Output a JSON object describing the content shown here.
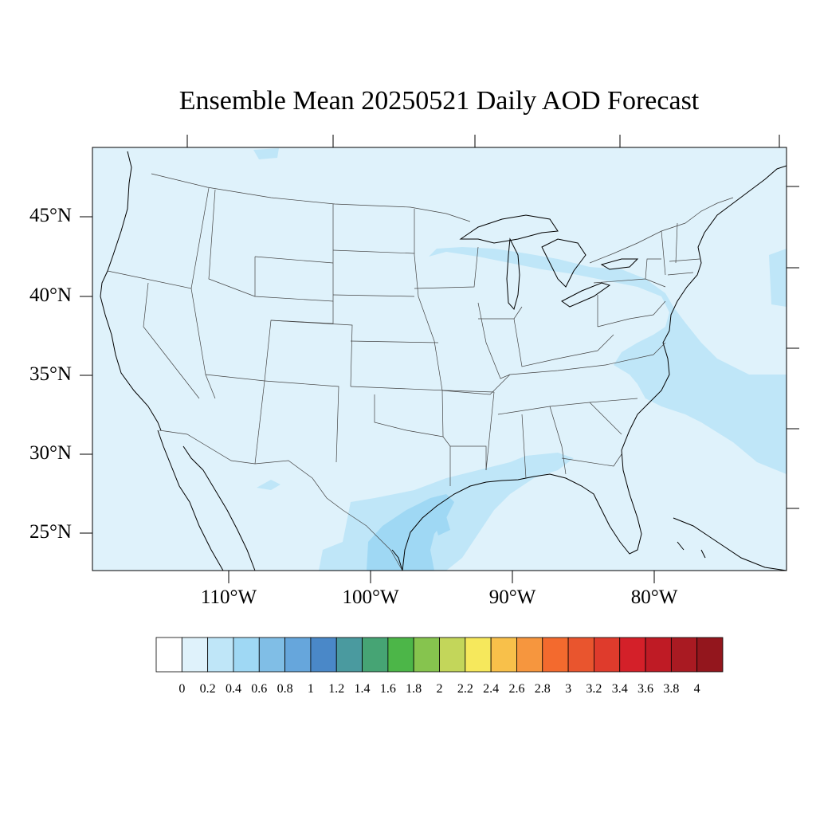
{
  "title": "Ensemble Mean 20250521 Daily AOD Forecast",
  "map": {
    "region": "Contiguous United States",
    "lon_range": [
      -119,
      -71
    ],
    "lat_range": [
      22.8,
      49.5
    ],
    "background_color": "#dff2fb",
    "lat_ticks": [
      {
        "value": 45,
        "label": "45°N"
      },
      {
        "value": 40,
        "label": "40°N"
      },
      {
        "value": 35,
        "label": "35°N"
      },
      {
        "value": 30,
        "label": "30°N"
      },
      {
        "value": 25,
        "label": "25°N"
      }
    ],
    "lon_ticks": [
      {
        "value": -110,
        "label": "110°W"
      },
      {
        "value": -100,
        "label": "100°W"
      },
      {
        "value": -90,
        "label": "90°W"
      },
      {
        "value": -80,
        "label": "80°W"
      }
    ]
  },
  "colorbar": {
    "colors": [
      "#ffffff",
      "#dff2fb",
      "#bfe6f8",
      "#9fd8f4",
      "#80bee6",
      "#66a6dc",
      "#4a88c8",
      "#4a9a9f",
      "#46a474",
      "#4cb648",
      "#86c44e",
      "#c3d65a",
      "#f6e85c",
      "#f8c04a",
      "#f6963e",
      "#f36a2e",
      "#e9552e",
      "#df3b2c",
      "#d42029",
      "#bf1b25",
      "#a91a22",
      "#93161d"
    ],
    "labels": [
      "0",
      "0.2",
      "0.4",
      "0.6",
      "0.8",
      "1",
      "1.2",
      "1.4",
      "1.6",
      "1.8",
      "2",
      "2.2",
      "2.4",
      "2.6",
      "2.8",
      "3",
      "3.2",
      "3.4",
      "3.6",
      "3.8",
      "4"
    ]
  }
}
